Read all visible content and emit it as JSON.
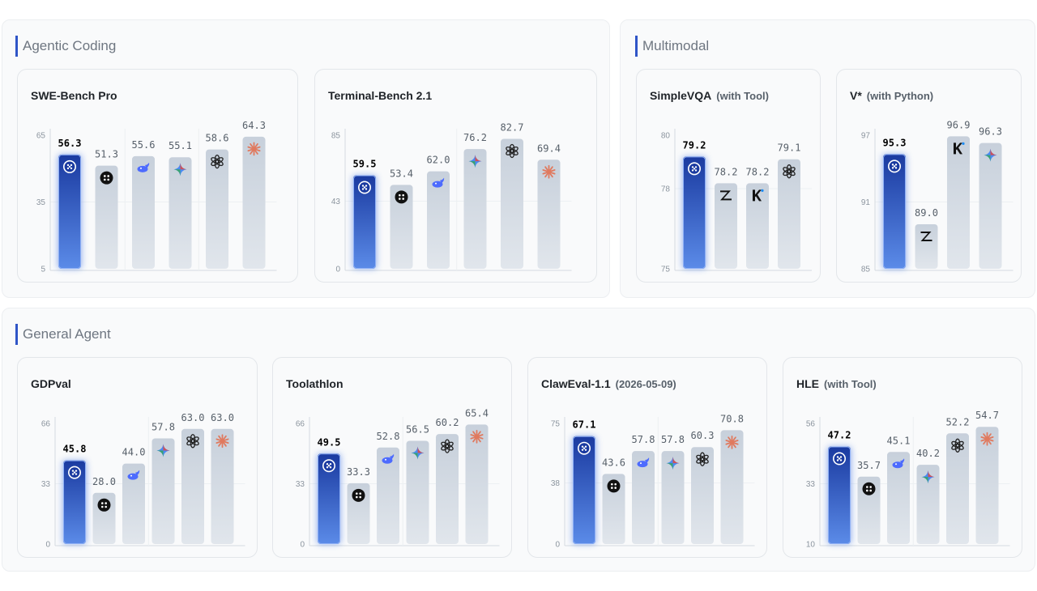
{
  "colors": {
    "highlight_top": "#1a3aa0",
    "highlight_bottom": "#5b8be8",
    "bar_top": "#c7d0db",
    "bar_bottom": "#e1e6ec",
    "value_highlight": "#000000",
    "value_other": "#57606a"
  },
  "sections": [
    {
      "title": "Agentic Coding",
      "cards": [
        {
          "title": "SWE-Bench Pro",
          "subtitle": "",
          "chart_data": {
            "type": "bar",
            "ylim": [
              5,
              65
            ],
            "yticks": [
              65,
              35,
              5
            ],
            "categories": [
              "model-a",
              "model-b",
              "deepseek",
              "gemini",
              "openai",
              "claude"
            ],
            "values": [
              56.3,
              51.3,
              55.6,
              55.1,
              58.6,
              64.3
            ],
            "labels": [
              "56.3",
              "51.3",
              "55.6",
              "55.1",
              "58.6",
              "64.3"
            ],
            "icons": [
              "model-a-icon",
              "model-b-icon",
              "deepseek-icon",
              "gemini-icon",
              "openai-icon",
              "claude-icon"
            ],
            "highlight": 0,
            "groups": [
              2,
              4
            ]
          }
        },
        {
          "title": "Terminal-Bench 2.1",
          "subtitle": "",
          "chart_data": {
            "type": "bar",
            "ylim": [
              0,
              85
            ],
            "yticks": [
              85,
              43,
              0
            ],
            "categories": [
              "model-a",
              "model-b",
              "deepseek",
              "gemini",
              "openai",
              "claude"
            ],
            "values": [
              59.5,
              53.4,
              62.0,
              76.2,
              82.7,
              69.4
            ],
            "labels": [
              "59.5",
              "53.4",
              "62.0",
              "76.2",
              "82.7",
              "69.4"
            ],
            "icons": [
              "model-a-icon",
              "model-b-icon",
              "deepseek-icon",
              "gemini-icon",
              "openai-icon",
              "claude-icon"
            ],
            "highlight": 0,
            "groups": [
              3
            ]
          }
        }
      ]
    },
    {
      "title": "Multimodal",
      "cards": [
        {
          "title": "SimpleVQA",
          "subtitle": "(with Tool)",
          "chart_data": {
            "type": "bar",
            "ylim": [
              75,
              80
            ],
            "yticks": [
              80,
              78,
              75
            ],
            "categories": [
              "model-a",
              "zhipu",
              "kimi",
              "openai"
            ],
            "values": [
              79.2,
              78.2,
              78.2,
              79.1
            ],
            "labels": [
              "79.2",
              "78.2",
              "78.2",
              "79.1"
            ],
            "icons": [
              "model-a-icon",
              "zhipu-icon",
              "kimi-icon",
              "openai-icon"
            ],
            "highlight": 0,
            "groups": []
          }
        },
        {
          "title": "V*",
          "subtitle": "(with Python)",
          "chart_data": {
            "type": "bar",
            "ylim": [
              85,
              97
            ],
            "yticks": [
              97,
              91,
              85
            ],
            "categories": [
              "model-a",
              "zhipu",
              "kimi",
              "gemini"
            ],
            "values": [
              95.3,
              89.0,
              96.9,
              96.3
            ],
            "labels": [
              "95.3",
              "89.0",
              "96.9",
              "96.3"
            ],
            "icons": [
              "model-a-icon",
              "zhipu-icon",
              "kimi-icon",
              "gemini-icon"
            ],
            "highlight": 0,
            "groups": []
          }
        }
      ]
    },
    {
      "title": "General Agent",
      "cards": [
        {
          "title": "GDPval",
          "subtitle": "",
          "chart_data": {
            "type": "bar",
            "ylim": [
              0,
              66
            ],
            "yticks": [
              66,
              33,
              0
            ],
            "categories": [
              "model-a",
              "model-b",
              "deepseek",
              "gemini",
              "openai",
              "claude"
            ],
            "values": [
              45.8,
              28.0,
              44.0,
              57.8,
              63.0,
              63.0
            ],
            "labels": [
              "45.8",
              "28.0",
              "44.0",
              "57.8",
              "63.0",
              "63.0"
            ],
            "icons": [
              "model-a-icon",
              "model-b-icon",
              "deepseek-icon",
              "gemini-icon",
              "openai-icon",
              "claude-icon"
            ],
            "highlight": 0,
            "groups": [
              3
            ]
          }
        },
        {
          "title": "Toolathlon",
          "subtitle": "",
          "chart_data": {
            "type": "bar",
            "ylim": [
              0,
              66
            ],
            "yticks": [
              66,
              33,
              0
            ],
            "categories": [
              "model-a",
              "model-b",
              "deepseek",
              "gemini",
              "openai",
              "claude"
            ],
            "values": [
              49.5,
              33.3,
              52.8,
              56.5,
              60.2,
              65.4
            ],
            "labels": [
              "49.5",
              "33.3",
              "52.8",
              "56.5",
              "60.2",
              "65.4"
            ],
            "icons": [
              "model-a-icon",
              "model-b-icon",
              "deepseek-icon",
              "gemini-icon",
              "openai-icon",
              "claude-icon"
            ],
            "highlight": 0,
            "groups": [
              3
            ]
          }
        },
        {
          "title": "ClawEval-1.1",
          "subtitle": "(2026-05-09)",
          "chart_data": {
            "type": "bar",
            "ylim": [
              0,
              75
            ],
            "yticks": [
              75,
              38,
              0
            ],
            "categories": [
              "model-a",
              "model-b",
              "deepseek",
              "gemini",
              "openai",
              "claude"
            ],
            "values": [
              67.1,
              43.6,
              57.8,
              57.8,
              60.3,
              70.8
            ],
            "labels": [
              "67.1",
              "43.6",
              "57.8",
              "57.8",
              "60.3",
              "70.8"
            ],
            "icons": [
              "model-a-icon",
              "model-b-icon",
              "deepseek-icon",
              "gemini-icon",
              "openai-icon",
              "claude-icon"
            ],
            "highlight": 0,
            "groups": [
              3
            ]
          }
        },
        {
          "title": "HLE",
          "subtitle": "(with Tool)",
          "chart_data": {
            "type": "bar",
            "ylim": [
              10,
              56
            ],
            "yticks": [
              56,
              33,
              10
            ],
            "categories": [
              "model-a",
              "model-b",
              "deepseek",
              "gemini",
              "openai",
              "claude"
            ],
            "values": [
              47.2,
              35.7,
              45.1,
              40.2,
              52.2,
              54.7
            ],
            "labels": [
              "47.2",
              "35.7",
              "45.1",
              "40.2",
              "52.2",
              "54.7"
            ],
            "icons": [
              "model-a-icon",
              "model-b-icon",
              "deepseek-icon",
              "gemini-icon",
              "openai-icon",
              "claude-icon"
            ],
            "highlight": 0,
            "groups": [
              3
            ]
          }
        }
      ]
    }
  ]
}
